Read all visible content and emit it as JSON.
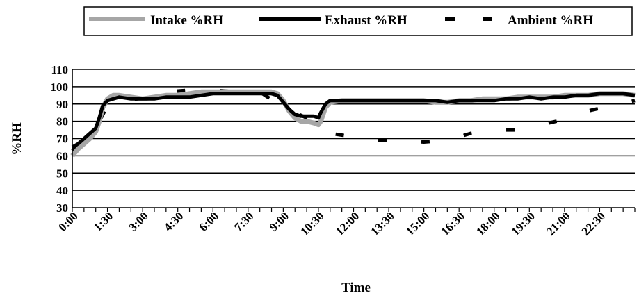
{
  "chart_data": {
    "type": "line",
    "xlabel": "Time",
    "ylabel": "%RH",
    "ylim": [
      30,
      110
    ],
    "yticks": [
      30,
      40,
      50,
      60,
      70,
      80,
      90,
      100,
      110
    ],
    "x_tick_labels": [
      "0:00",
      "1:30",
      "3:00",
      "4:30",
      "6:00",
      "7:30",
      "9:00",
      "10:30",
      "12:00",
      "13:30",
      "15:00",
      "16:30",
      "18:00",
      "19:30",
      "21:00",
      "22:30"
    ],
    "x_tick_hours": [
      0,
      1.5,
      3,
      4.5,
      6,
      7.5,
      9,
      10.5,
      12,
      13.5,
      15,
      16.5,
      18,
      19.5,
      21,
      22.5
    ],
    "xlim_hours": [
      0,
      24
    ],
    "grid": "horizontal",
    "legend_position": "top",
    "series": [
      {
        "name": "Intake %RH",
        "style": "solid-thick",
        "color": "#a6a6a6",
        "points": [
          [
            0,
            60
          ],
          [
            0.25,
            64
          ],
          [
            0.5,
            67
          ],
          [
            0.75,
            70
          ],
          [
            1.0,
            74
          ],
          [
            1.15,
            80
          ],
          [
            1.3,
            88
          ],
          [
            1.5,
            93
          ],
          [
            1.75,
            95
          ],
          [
            2.0,
            95
          ],
          [
            2.5,
            94
          ],
          [
            3.0,
            93
          ],
          [
            3.5,
            94
          ],
          [
            4.0,
            95
          ],
          [
            4.5,
            95
          ],
          [
            5.0,
            96
          ],
          [
            5.5,
            97
          ],
          [
            6.0,
            97
          ],
          [
            6.5,
            97
          ],
          [
            7.0,
            97
          ],
          [
            7.5,
            97
          ],
          [
            8.0,
            97
          ],
          [
            8.5,
            97
          ],
          [
            8.75,
            96
          ],
          [
            9.0,
            92
          ],
          [
            9.25,
            86
          ],
          [
            9.5,
            82
          ],
          [
            9.75,
            80
          ],
          [
            10.0,
            80
          ],
          [
            10.3,
            79
          ],
          [
            10.5,
            78
          ],
          [
            10.6,
            80
          ],
          [
            10.8,
            88
          ],
          [
            11.0,
            91
          ],
          [
            11.5,
            92
          ],
          [
            12,
            92
          ],
          [
            13,
            92
          ],
          [
            14,
            92
          ],
          [
            15,
            92
          ],
          [
            15.5,
            91
          ],
          [
            16,
            91
          ],
          [
            16.5,
            92
          ],
          [
            17,
            92
          ],
          [
            17.5,
            93
          ],
          [
            18,
            93
          ],
          [
            18.5,
            93
          ],
          [
            19,
            94
          ],
          [
            19.5,
            94
          ],
          [
            20,
            94
          ],
          [
            20.5,
            94
          ],
          [
            21,
            95
          ],
          [
            21.5,
            95
          ],
          [
            22,
            95
          ],
          [
            22.5,
            96
          ],
          [
            23,
            96
          ],
          [
            23.5,
            96
          ],
          [
            24,
            95
          ]
        ]
      },
      {
        "name": "Exhaust %RH",
        "style": "solid-thick",
        "color": "#000000",
        "points": [
          [
            0,
            65
          ],
          [
            0.25,
            67
          ],
          [
            0.5,
            70
          ],
          [
            0.75,
            73
          ],
          [
            1.0,
            76
          ],
          [
            1.15,
            82
          ],
          [
            1.3,
            89
          ],
          [
            1.5,
            92
          ],
          [
            1.75,
            93
          ],
          [
            2.0,
            94
          ],
          [
            2.5,
            93
          ],
          [
            3.0,
            93
          ],
          [
            3.5,
            93
          ],
          [
            4.0,
            94
          ],
          [
            4.5,
            94
          ],
          [
            5.0,
            94
          ],
          [
            5.5,
            95
          ],
          [
            6.0,
            96
          ],
          [
            6.5,
            96
          ],
          [
            7.0,
            96
          ],
          [
            7.5,
            96
          ],
          [
            8.0,
            96
          ],
          [
            8.5,
            96
          ],
          [
            8.75,
            95
          ],
          [
            9.0,
            91
          ],
          [
            9.25,
            87
          ],
          [
            9.5,
            84
          ],
          [
            9.75,
            83
          ],
          [
            10.0,
            83
          ],
          [
            10.3,
            83
          ],
          [
            10.5,
            82
          ],
          [
            10.6,
            85
          ],
          [
            10.8,
            90
          ],
          [
            11.0,
            92
          ],
          [
            11.5,
            92
          ],
          [
            12,
            92
          ],
          [
            12.5,
            92
          ],
          [
            13,
            92
          ],
          [
            13.5,
            92
          ],
          [
            14,
            92
          ],
          [
            15,
            92
          ],
          [
            15.5,
            92
          ],
          [
            16,
            91
          ],
          [
            16.5,
            92
          ],
          [
            17,
            92
          ],
          [
            17.5,
            92
          ],
          [
            18,
            92
          ],
          [
            18.5,
            93
          ],
          [
            19,
            93
          ],
          [
            19.5,
            94
          ],
          [
            20,
            93
          ],
          [
            20.5,
            94
          ],
          [
            21,
            94
          ],
          [
            21.5,
            95
          ],
          [
            22,
            95
          ],
          [
            22.5,
            96
          ],
          [
            23,
            96
          ],
          [
            23.5,
            96
          ],
          [
            24,
            95
          ]
        ]
      },
      {
        "name": "Ambient %RH",
        "style": "dashed",
        "color": "#000000",
        "points": [
          [
            0,
            63
          ],
          [
            1.0,
            76
          ],
          [
            1.5,
            89
          ],
          [
            2.0,
            92
          ],
          [
            3.0,
            93
          ],
          [
            4.0,
            97
          ],
          [
            5.0,
            98
          ],
          [
            6.0,
            98
          ],
          [
            7.0,
            97
          ],
          [
            8.0,
            97
          ],
          [
            9.0,
            88
          ],
          [
            9.5,
            85
          ],
          [
            10.0,
            82
          ],
          [
            10.5,
            81
          ],
          [
            11.0,
            73
          ],
          [
            11.5,
            72
          ],
          [
            12.0,
            71
          ],
          [
            13.0,
            69
          ],
          [
            14.0,
            69
          ],
          [
            15.0,
            68
          ],
          [
            16.0,
            69
          ],
          [
            17.0,
            73
          ],
          [
            18.0,
            75
          ],
          [
            19.0,
            75
          ],
          [
            20.0,
            78
          ],
          [
            21.0,
            81
          ],
          [
            22.0,
            86
          ],
          [
            23.0,
            89
          ],
          [
            24.0,
            92
          ]
        ]
      }
    ]
  }
}
